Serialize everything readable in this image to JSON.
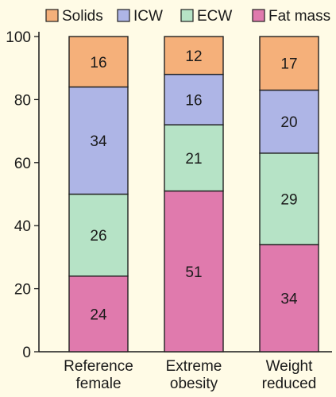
{
  "chart_data": {
    "type": "bar",
    "stacked": true,
    "categories": [
      [
        "Reference",
        "female"
      ],
      [
        "Extreme",
        "obesity"
      ],
      [
        "Weight",
        "reduced"
      ]
    ],
    "series": [
      {
        "name": "Fat mass",
        "color": "#e07aad",
        "values": [
          24,
          51,
          34
        ]
      },
      {
        "name": "ECW",
        "color": "#b6e3c6",
        "values": [
          26,
          21,
          29
        ]
      },
      {
        "name": "ICW",
        "color": "#aeb5e6",
        "values": [
          34,
          16,
          20
        ]
      },
      {
        "name": "Solids",
        "color": "#f5b07a",
        "values": [
          16,
          12,
          17
        ]
      }
    ],
    "legend_order": [
      "Solids",
      "ICW",
      "ECW",
      "Fat mass"
    ],
    "legend_position": "top",
    "ylim": [
      0,
      100
    ],
    "yticks": [
      0,
      20,
      40,
      60,
      80,
      100
    ],
    "grid": false,
    "background": "#fffbe6",
    "bar_edge_color": "#222222"
  }
}
